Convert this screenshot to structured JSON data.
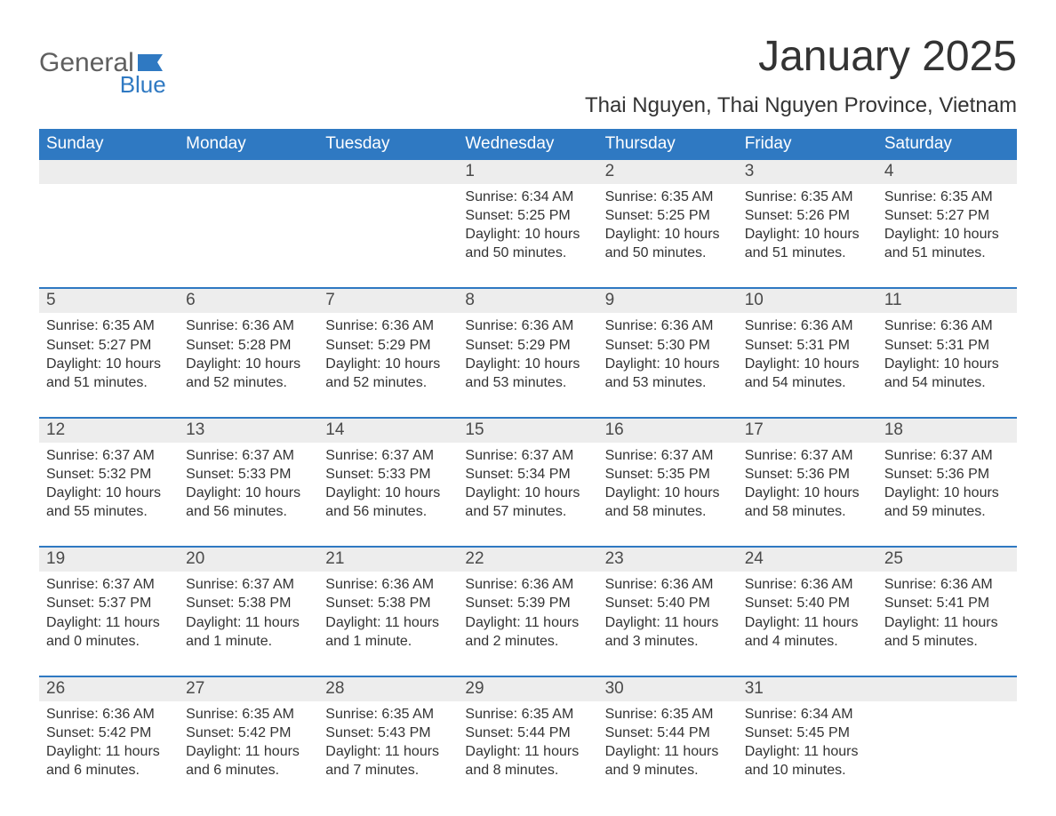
{
  "logo": {
    "text_general": "General",
    "text_blue": "Blue",
    "general_color": "#5f5f5f",
    "blue_color": "#2f79c2",
    "flag_color": "#2f79c2"
  },
  "title": "January 2025",
  "location": "Thai Nguyen, Thai Nguyen Province, Vietnam",
  "colors": {
    "header_bg": "#2f79c2",
    "header_text": "#ffffff",
    "daynum_bg": "#ededed",
    "body_text": "#333333",
    "divider": "#2f79c2",
    "page_bg": "#ffffff"
  },
  "fonts": {
    "title_size_pt": 36,
    "location_size_pt": 18,
    "header_size_pt": 14,
    "daynum_size_pt": 14,
    "body_size_pt": 12
  },
  "day_headers": [
    "Sunday",
    "Monday",
    "Tuesday",
    "Wednesday",
    "Thursday",
    "Friday",
    "Saturday"
  ],
  "weeks": [
    [
      {
        "day": "",
        "sunrise": "",
        "sunset": "",
        "daylight": ""
      },
      {
        "day": "",
        "sunrise": "",
        "sunset": "",
        "daylight": ""
      },
      {
        "day": "",
        "sunrise": "",
        "sunset": "",
        "daylight": ""
      },
      {
        "day": "1",
        "sunrise": "Sunrise: 6:34 AM",
        "sunset": "Sunset: 5:25 PM",
        "daylight": "Daylight: 10 hours and 50 minutes."
      },
      {
        "day": "2",
        "sunrise": "Sunrise: 6:35 AM",
        "sunset": "Sunset: 5:25 PM",
        "daylight": "Daylight: 10 hours and 50 minutes."
      },
      {
        "day": "3",
        "sunrise": "Sunrise: 6:35 AM",
        "sunset": "Sunset: 5:26 PM",
        "daylight": "Daylight: 10 hours and 51 minutes."
      },
      {
        "day": "4",
        "sunrise": "Sunrise: 6:35 AM",
        "sunset": "Sunset: 5:27 PM",
        "daylight": "Daylight: 10 hours and 51 minutes."
      }
    ],
    [
      {
        "day": "5",
        "sunrise": "Sunrise: 6:35 AM",
        "sunset": "Sunset: 5:27 PM",
        "daylight": "Daylight: 10 hours and 51 minutes."
      },
      {
        "day": "6",
        "sunrise": "Sunrise: 6:36 AM",
        "sunset": "Sunset: 5:28 PM",
        "daylight": "Daylight: 10 hours and 52 minutes."
      },
      {
        "day": "7",
        "sunrise": "Sunrise: 6:36 AM",
        "sunset": "Sunset: 5:29 PM",
        "daylight": "Daylight: 10 hours and 52 minutes."
      },
      {
        "day": "8",
        "sunrise": "Sunrise: 6:36 AM",
        "sunset": "Sunset: 5:29 PM",
        "daylight": "Daylight: 10 hours and 53 minutes."
      },
      {
        "day": "9",
        "sunrise": "Sunrise: 6:36 AM",
        "sunset": "Sunset: 5:30 PM",
        "daylight": "Daylight: 10 hours and 53 minutes."
      },
      {
        "day": "10",
        "sunrise": "Sunrise: 6:36 AM",
        "sunset": "Sunset: 5:31 PM",
        "daylight": "Daylight: 10 hours and 54 minutes."
      },
      {
        "day": "11",
        "sunrise": "Sunrise: 6:36 AM",
        "sunset": "Sunset: 5:31 PM",
        "daylight": "Daylight: 10 hours and 54 minutes."
      }
    ],
    [
      {
        "day": "12",
        "sunrise": "Sunrise: 6:37 AM",
        "sunset": "Sunset: 5:32 PM",
        "daylight": "Daylight: 10 hours and 55 minutes."
      },
      {
        "day": "13",
        "sunrise": "Sunrise: 6:37 AM",
        "sunset": "Sunset: 5:33 PM",
        "daylight": "Daylight: 10 hours and 56 minutes."
      },
      {
        "day": "14",
        "sunrise": "Sunrise: 6:37 AM",
        "sunset": "Sunset: 5:33 PM",
        "daylight": "Daylight: 10 hours and 56 minutes."
      },
      {
        "day": "15",
        "sunrise": "Sunrise: 6:37 AM",
        "sunset": "Sunset: 5:34 PM",
        "daylight": "Daylight: 10 hours and 57 minutes."
      },
      {
        "day": "16",
        "sunrise": "Sunrise: 6:37 AM",
        "sunset": "Sunset: 5:35 PM",
        "daylight": "Daylight: 10 hours and 58 minutes."
      },
      {
        "day": "17",
        "sunrise": "Sunrise: 6:37 AM",
        "sunset": "Sunset: 5:36 PM",
        "daylight": "Daylight: 10 hours and 58 minutes."
      },
      {
        "day": "18",
        "sunrise": "Sunrise: 6:37 AM",
        "sunset": "Sunset: 5:36 PM",
        "daylight": "Daylight: 10 hours and 59 minutes."
      }
    ],
    [
      {
        "day": "19",
        "sunrise": "Sunrise: 6:37 AM",
        "sunset": "Sunset: 5:37 PM",
        "daylight": "Daylight: 11 hours and 0 minutes."
      },
      {
        "day": "20",
        "sunrise": "Sunrise: 6:37 AM",
        "sunset": "Sunset: 5:38 PM",
        "daylight": "Daylight: 11 hours and 1 minute."
      },
      {
        "day": "21",
        "sunrise": "Sunrise: 6:36 AM",
        "sunset": "Sunset: 5:38 PM",
        "daylight": "Daylight: 11 hours and 1 minute."
      },
      {
        "day": "22",
        "sunrise": "Sunrise: 6:36 AM",
        "sunset": "Sunset: 5:39 PM",
        "daylight": "Daylight: 11 hours and 2 minutes."
      },
      {
        "day": "23",
        "sunrise": "Sunrise: 6:36 AM",
        "sunset": "Sunset: 5:40 PM",
        "daylight": "Daylight: 11 hours and 3 minutes."
      },
      {
        "day": "24",
        "sunrise": "Sunrise: 6:36 AM",
        "sunset": "Sunset: 5:40 PM",
        "daylight": "Daylight: 11 hours and 4 minutes."
      },
      {
        "day": "25",
        "sunrise": "Sunrise: 6:36 AM",
        "sunset": "Sunset: 5:41 PM",
        "daylight": "Daylight: 11 hours and 5 minutes."
      }
    ],
    [
      {
        "day": "26",
        "sunrise": "Sunrise: 6:36 AM",
        "sunset": "Sunset: 5:42 PM",
        "daylight": "Daylight: 11 hours and 6 minutes."
      },
      {
        "day": "27",
        "sunrise": "Sunrise: 6:35 AM",
        "sunset": "Sunset: 5:42 PM",
        "daylight": "Daylight: 11 hours and 6 minutes."
      },
      {
        "day": "28",
        "sunrise": "Sunrise: 6:35 AM",
        "sunset": "Sunset: 5:43 PM",
        "daylight": "Daylight: 11 hours and 7 minutes."
      },
      {
        "day": "29",
        "sunrise": "Sunrise: 6:35 AM",
        "sunset": "Sunset: 5:44 PM",
        "daylight": "Daylight: 11 hours and 8 minutes."
      },
      {
        "day": "30",
        "sunrise": "Sunrise: 6:35 AM",
        "sunset": "Sunset: 5:44 PM",
        "daylight": "Daylight: 11 hours and 9 minutes."
      },
      {
        "day": "31",
        "sunrise": "Sunrise: 6:34 AM",
        "sunset": "Sunset: 5:45 PM",
        "daylight": "Daylight: 11 hours and 10 minutes."
      },
      {
        "day": "",
        "sunrise": "",
        "sunset": "",
        "daylight": ""
      }
    ]
  ]
}
